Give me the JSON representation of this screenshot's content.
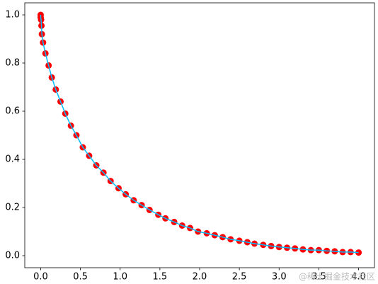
{
  "chart_data": {
    "type": "scatter",
    "x": [
      0,
      0,
      0.005,
      0.01,
      0.015,
      0.03,
      0.06,
      0.1,
      0.14,
      0.19,
      0.25,
      0.31,
      0.38,
      0.45,
      0.53,
      0.61,
      0.7,
      0.79,
      0.88,
      0.98,
      1.07,
      1.17,
      1.27,
      1.37,
      1.48,
      1.57,
      1.68,
      1.78,
      1.88,
      1.98,
      2.09,
      2.19,
      2.29,
      2.39,
      2.5,
      2.6,
      2.69,
      2.8,
      2.9,
      3.0,
      3.1,
      3.2,
      3.3,
      3.4,
      3.5,
      3.6,
      3.7,
      3.8,
      3.9,
      4.0
    ],
    "series": [
      {
        "style": "marker",
        "color": "#ff0000",
        "values": [
          1.0,
          0.99,
          0.98,
          0.955,
          0.92,
          0.885,
          0.84,
          0.79,
          0.74,
          0.69,
          0.64,
          0.59,
          0.54,
          0.5,
          0.45,
          0.415,
          0.375,
          0.345,
          0.31,
          0.28,
          0.255,
          0.23,
          0.21,
          0.19,
          0.17,
          0.155,
          0.14,
          0.125,
          0.115,
          0.1,
          0.093,
          0.085,
          0.077,
          0.068,
          0.062,
          0.056,
          0.05,
          0.045,
          0.04,
          0.036,
          0.033,
          0.03,
          0.026,
          0.023,
          0.023,
          0.02,
          0.018,
          0.015,
          0.015,
          0.013
        ]
      },
      {
        "style": "line",
        "color": "#00bfff",
        "values": [
          1.0,
          0.99,
          0.98,
          0.955,
          0.92,
          0.885,
          0.84,
          0.79,
          0.74,
          0.69,
          0.64,
          0.59,
          0.54,
          0.5,
          0.45,
          0.415,
          0.375,
          0.345,
          0.31,
          0.28,
          0.255,
          0.23,
          0.21,
          0.19,
          0.17,
          0.155,
          0.14,
          0.125,
          0.115,
          0.1,
          0.093,
          0.085,
          0.077,
          0.068,
          0.062,
          0.056,
          0.05,
          0.045,
          0.04,
          0.036,
          0.033,
          0.03,
          0.026,
          0.023,
          0.023,
          0.02,
          0.018,
          0.015,
          0.015,
          0.013
        ]
      }
    ],
    "xlim": [
      -0.2,
      4.2
    ],
    "ylim": [
      -0.05,
      1.05
    ],
    "xticks": [
      {
        "value": 0,
        "label": "0.0"
      },
      0.5,
      {
        "value": 1,
        "label": "1.0"
      },
      1.5,
      {
        "value": 2,
        "label": "2.0"
      },
      2.5,
      {
        "value": 3,
        "label": "3.0"
      },
      3.5,
      {
        "value": 4,
        "label": "4.0"
      }
    ],
    "yticks": [
      {
        "value": 0,
        "label": "0.0"
      },
      0.2,
      0.4,
      0.6,
      0.8,
      {
        "value": 1,
        "label": "1.0"
      }
    ],
    "watermark": "@稀土掘金技术社区"
  }
}
